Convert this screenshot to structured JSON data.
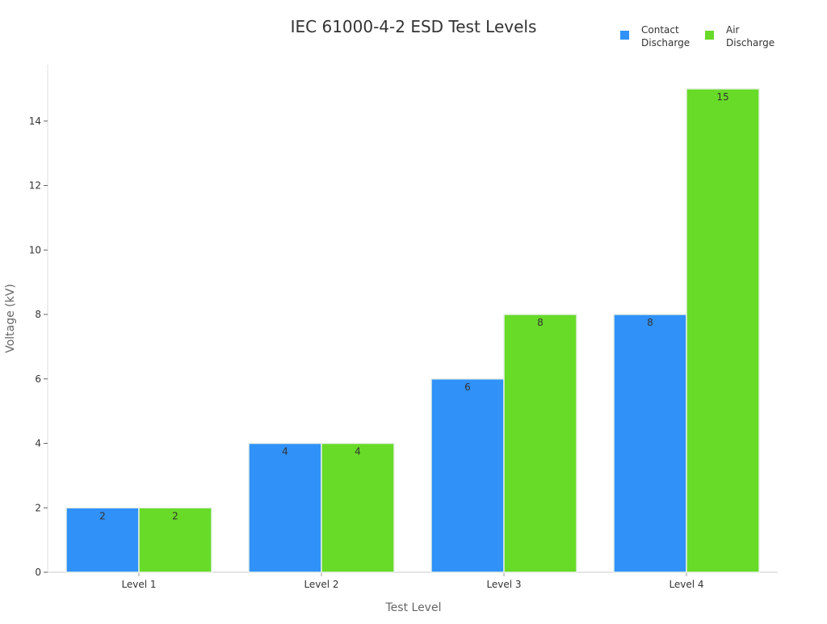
{
  "chart_data": {
    "type": "bar",
    "title": "IEC 61000-4-2 ESD Test Levels",
    "xlabel": "Test Level",
    "ylabel": "Voltage (kV)",
    "categories": [
      "Level 1",
      "Level 2",
      "Level 3",
      "Level 4"
    ],
    "series": [
      {
        "name": "Contact Discharge",
        "name_lines": [
          "Contact",
          "Discharge"
        ],
        "values": [
          2,
          4,
          6,
          8
        ],
        "color": "#3091f8"
      },
      {
        "name": "Air Discharge",
        "name_lines": [
          "Air",
          "Discharge"
        ],
        "values": [
          2,
          4,
          8,
          15
        ],
        "color": "#68da28"
      }
    ],
    "ylim": [
      0,
      15.75
    ],
    "yticks": [
      0,
      2,
      4,
      6,
      8,
      10,
      12,
      14
    ],
    "grid": false,
    "legend": "top-right",
    "data_labels": true
  }
}
